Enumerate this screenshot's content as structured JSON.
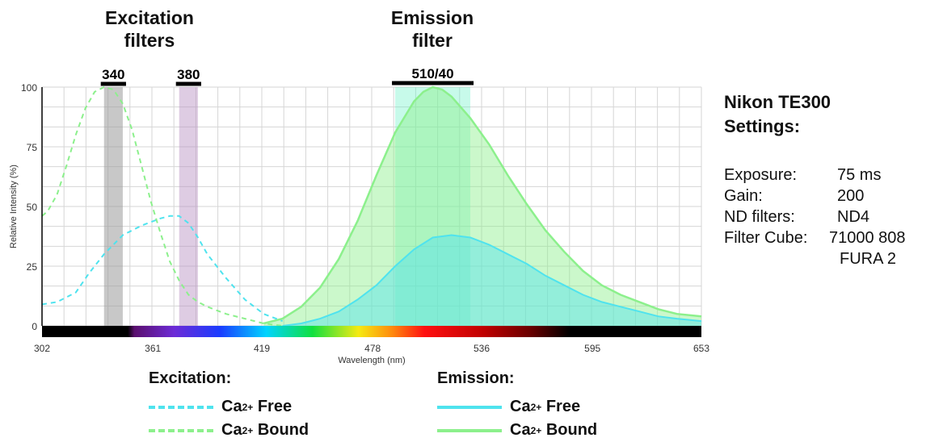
{
  "headers": {
    "excitation": [
      "Excitation",
      "filters"
    ],
    "emission": [
      "Emission",
      "filter"
    ]
  },
  "settings": {
    "title": [
      "Nikon TE300",
      "Settings:"
    ],
    "rows": [
      {
        "label": "Exposure:",
        "value": "75 ms"
      },
      {
        "label": "Gain:",
        "value": "200"
      },
      {
        "label": "ND filters:",
        "value": "ND4"
      },
      {
        "label": "Filter Cube:",
        "value": "71000 808"
      },
      {
        "label": "",
        "value": "FURA 2"
      }
    ]
  },
  "legend": {
    "excitation_title": "Excitation:",
    "emission_title": "Emission:",
    "free_label": "Free",
    "bound_label": "Bound",
    "ion": "Ca",
    "charge": "2+"
  },
  "colors": {
    "free": "#4fe3ee",
    "bound": "#8cf08c",
    "filter_340": "#9a9a9a",
    "filter_380": "#b58fc2",
    "filter_510": "#5ef0c4",
    "grid": "#d6d6d6"
  },
  "chart_data": {
    "type": "line",
    "xlabel": "Wavelength (nm)",
    "ylabel": "Relative Intensity (%)",
    "xlim": [
      302,
      653
    ],
    "ylim": [
      0,
      100
    ],
    "x_ticks": [
      302,
      361,
      419,
      478,
      536,
      595,
      653
    ],
    "y_ticks": [
      0,
      25,
      50,
      75,
      100
    ],
    "grid": true,
    "filters": [
      {
        "label": "340",
        "range": [
          335,
          345
        ],
        "type": "excitation"
      },
      {
        "label": "380",
        "range": [
          375,
          385
        ],
        "type": "excitation"
      },
      {
        "label": "510/40",
        "range": [
          490,
          530
        ],
        "type": "emission"
      }
    ],
    "series": [
      {
        "name": "Excitation Ca2+ Free",
        "style": "dashed",
        "fill": false,
        "x": [
          302,
          310,
          320,
          327,
          335,
          345,
          355,
          365,
          370,
          375,
          380,
          385,
          390,
          400,
          410,
          420,
          430
        ],
        "y": [
          9,
          10,
          14,
          22,
          30,
          38,
          42,
          45,
          46,
          46,
          43,
          37,
          30,
          20,
          11,
          5,
          2
        ]
      },
      {
        "name": "Excitation Ca2+ Bound",
        "style": "dashed",
        "fill": false,
        "x": [
          302,
          305,
          310,
          315,
          320,
          325,
          330,
          335,
          340,
          345,
          350,
          355,
          360,
          365,
          370,
          375,
          380,
          385,
          390,
          400,
          410,
          420,
          430
        ],
        "y": [
          46,
          48,
          55,
          67,
          80,
          91,
          98,
          100,
          99,
          93,
          82,
          67,
          52,
          39,
          27,
          19,
          13,
          10,
          8,
          5,
          3,
          1,
          0
        ]
      },
      {
        "name": "Emission Ca2+ Free",
        "style": "solid",
        "fill": true,
        "x": [
          430,
          440,
          450,
          460,
          470,
          480,
          490,
          500,
          510,
          520,
          530,
          540,
          550,
          560,
          570,
          580,
          590,
          600,
          610,
          620,
          630,
          640,
          653
        ],
        "y": [
          0,
          1,
          3,
          6,
          11,
          17,
          25,
          32,
          37,
          38,
          37,
          34,
          30,
          26,
          21,
          17,
          13,
          10,
          8,
          6,
          4,
          3,
          2
        ]
      },
      {
        "name": "Emission Ca2+ Bound",
        "style": "solid",
        "fill": true,
        "x": [
          420,
          430,
          440,
          450,
          460,
          470,
          480,
          490,
          500,
          505,
          510,
          515,
          520,
          530,
          540,
          550,
          560,
          570,
          580,
          590,
          600,
          610,
          620,
          630,
          640,
          653
        ],
        "y": [
          1,
          3,
          8,
          16,
          28,
          44,
          63,
          81,
          94,
          98,
          100,
          99,
          96,
          87,
          76,
          63,
          51,
          40,
          31,
          23,
          17,
          13,
          10,
          7,
          5,
          4
        ]
      }
    ]
  }
}
